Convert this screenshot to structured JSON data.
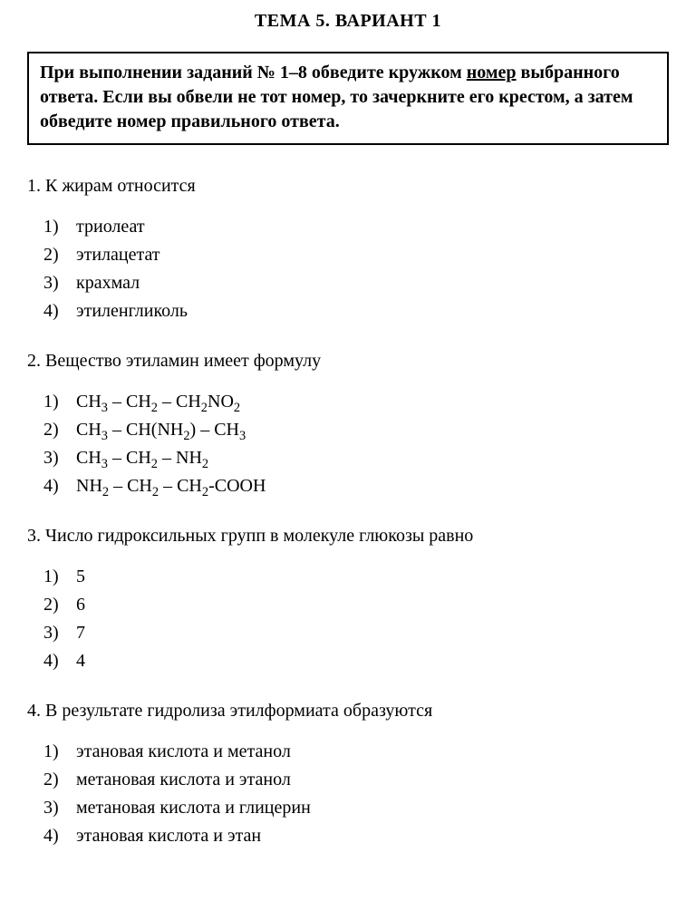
{
  "title": "ТЕМА 5. ВАРИАНТ 1",
  "instruction": {
    "part1": "При выполнении заданий № 1–8 обведите кружком ",
    "underlined": "номер",
    "part2": " выбранного ответа. Если вы обвели не тот номер, то зачеркните его крестом, а затем обведите номер правильного ответа."
  },
  "questions": [
    {
      "num": "1.",
      "stem": "К жирам относится",
      "options": [
        {
          "n": "1)",
          "text": "триолеат"
        },
        {
          "n": "2)",
          "text": "этилацетат"
        },
        {
          "n": "3)",
          "text": "крахмал"
        },
        {
          "n": "4)",
          "text": "этиленгликоль"
        }
      ]
    },
    {
      "num": "2.",
      "stem": "Вещество этиламин имеет формулу",
      "options": [
        {
          "n": "1)",
          "html": "CH<sub>3</sub> – CH<sub>2</sub> – CH<sub>2</sub>NO<sub>2</sub>"
        },
        {
          "n": "2)",
          "html": "CH<sub>3</sub> – CH(NH<sub>2</sub>) – CH<sub>3</sub>"
        },
        {
          "n": "3)",
          "html": "CH<sub>3</sub> – CH<sub>2</sub> – NH<sub>2</sub>"
        },
        {
          "n": "4)",
          "html": "NH<sub>2</sub> – CH<sub>2</sub> – CH<sub>2</sub>-COOH"
        }
      ]
    },
    {
      "num": "3.",
      "stem": "Число гидроксильных групп в молекуле глюкозы равно",
      "options": [
        {
          "n": "1)",
          "text": "5"
        },
        {
          "n": "2)",
          "text": "6"
        },
        {
          "n": "3)",
          "text": "7"
        },
        {
          "n": "4)",
          "text": "4"
        }
      ]
    },
    {
      "num": "4.",
      "stem": "В результате гидролиза этилформиата образуются",
      "options": [
        {
          "n": "1)",
          "text": "этановая кислота и метанол"
        },
        {
          "n": "2)",
          "text": " метановая кислота и этанол"
        },
        {
          "n": "3)",
          "text": "метановая кислота и глицерин"
        },
        {
          "n": "4)",
          "text": "этановая кислота и этан"
        }
      ]
    }
  ]
}
